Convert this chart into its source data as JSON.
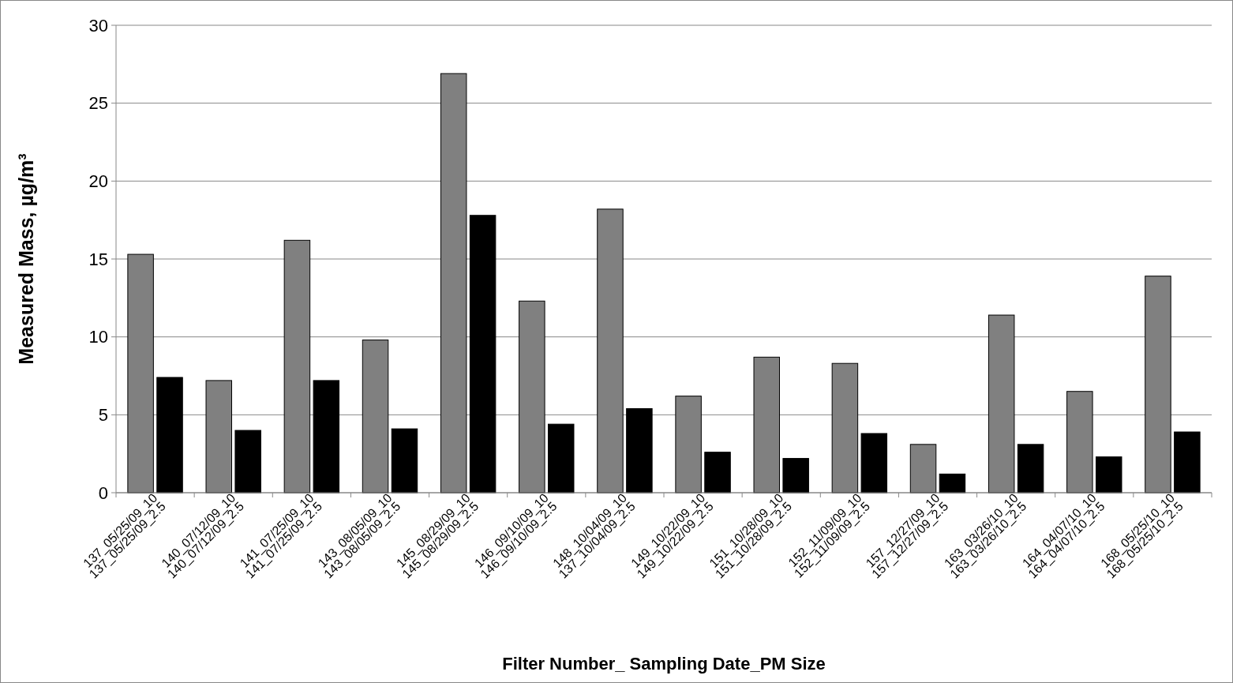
{
  "chart_data": {
    "type": "bar",
    "xlabel": "Filter Number_ Sampling Date_PM Size",
    "ylabel": "Measured  Mass, µg/m³",
    "categories": [
      "137_05/25/09_10\n137_05/25/09_2.5",
      "140_07/12/09_10\n140_07/12/09_2.5",
      "141_07/25/09_10\n141_07/25/09_2.5",
      "143_08/05/09_10\n143_08/05/09_2.5",
      "145_08/29/09_10\n145_08/29/09_2.5",
      "146_09/10/09_10\n146_09/10/09_2.5",
      "148_10/04/09_10\n137_10/04/09_2.5",
      "149_10/22/09_10\n149_10/22/09_2.5",
      "151_10/28/09_10\n151_10/28/09_2.5",
      "152_11/09/09_10\n152_11/09/09_2.5",
      "157_12/27/09_10\n157_12/27/09_2.5",
      "163_03/26/10_10\n163_03/26/10_2.5",
      "164_04/07/10_10\n164_04/07/10_2.5",
      "168_05/25/10_10\n168_05/25/10_2.5"
    ],
    "series": [
      {
        "color": "#808080",
        "values": [
          15.3,
          7.2,
          16.2,
          9.8,
          26.9,
          12.3,
          18.2,
          6.2,
          8.7,
          8.3,
          3.1,
          11.4,
          6.5,
          13.9
        ]
      },
      {
        "color": "#000000",
        "values": [
          7.4,
          4.0,
          7.2,
          4.1,
          17.8,
          4.4,
          5.4,
          2.6,
          2.2,
          3.8,
          1.2,
          3.1,
          2.3,
          3.9
        ]
      }
    ],
    "ylim": [
      0,
      30
    ],
    "yticks": [
      0,
      5,
      10,
      15,
      20,
      25,
      30
    ],
    "grid": "y"
  }
}
